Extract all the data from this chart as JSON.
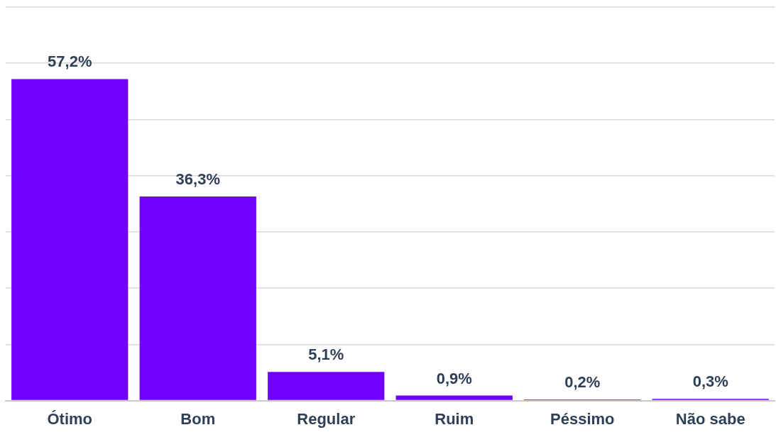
{
  "chart_data": {
    "type": "bar",
    "categories": [
      "Ótimo",
      "Bom",
      "Regular",
      "Ruim",
      "Péssimo",
      "Não sabe"
    ],
    "values": [
      57.2,
      36.3,
      5.1,
      0.9,
      0.2,
      0.3
    ],
    "value_labels": [
      "57,2%",
      "36,3%",
      "5,1%",
      "0,9%",
      "0,2%",
      "0,3%"
    ],
    "color": "#7200ff",
    "ylim": [
      0,
      70
    ],
    "yticks": [
      {
        "value": 0,
        "label": null
      },
      {
        "value": 10,
        "label": null
      },
      {
        "value": 20,
        "label": null
      },
      {
        "value": 30,
        "label": null
      },
      {
        "value": 40,
        "label": null
      },
      {
        "value": 50,
        "label": null
      },
      {
        "value": 60,
        "label": null
      },
      {
        "value": 70,
        "label": null
      }
    ],
    "grid": "y",
    "tick_labels": "x",
    "legend": false
  }
}
